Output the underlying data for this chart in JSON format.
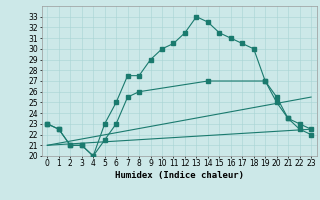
{
  "xlabel": "Humidex (Indice chaleur)",
  "bg_color": "#cce8e8",
  "line_color": "#1a7a6e",
  "xlim": [
    -0.5,
    23.5
  ],
  "ylim": [
    20,
    34
  ],
  "yticks": [
    20,
    21,
    22,
    23,
    24,
    25,
    26,
    27,
    28,
    29,
    30,
    31,
    32,
    33
  ],
  "xticks": [
    0,
    1,
    2,
    3,
    4,
    5,
    6,
    7,
    8,
    9,
    10,
    11,
    12,
    13,
    14,
    15,
    16,
    17,
    18,
    19,
    20,
    21,
    22,
    23
  ],
  "curve1_x": [
    0,
    1,
    2,
    3,
    4,
    5,
    6,
    7,
    8,
    9,
    10,
    11,
    12,
    13,
    14,
    15,
    16,
    17,
    18,
    19,
    20,
    21,
    22,
    23
  ],
  "curve1_y": [
    23.0,
    22.5,
    21.0,
    21.0,
    20.0,
    23.0,
    25.0,
    27.5,
    27.5,
    29.0,
    30.0,
    30.5,
    31.5,
    33.0,
    32.5,
    31.5,
    31.0,
    30.5,
    30.0,
    27.0,
    25.0,
    23.5,
    22.5,
    22.0
  ],
  "curve2_x": [
    0,
    1,
    2,
    3,
    4,
    5,
    6,
    7,
    8,
    14,
    19,
    20,
    21,
    22,
    23
  ],
  "curve2_y": [
    23.0,
    22.5,
    21.0,
    21.0,
    20.0,
    21.5,
    23.0,
    25.5,
    26.0,
    27.0,
    27.0,
    25.5,
    23.5,
    23.0,
    22.5
  ],
  "curve3_x": [
    0,
    23
  ],
  "curve3_y": [
    21.0,
    22.5
  ],
  "curve4_x": [
    0,
    23
  ],
  "curve4_y": [
    21.0,
    25.5
  ],
  "grid_color": "#a8d4d4",
  "tick_fontsize": 5.5,
  "xlabel_fontsize": 6.5
}
